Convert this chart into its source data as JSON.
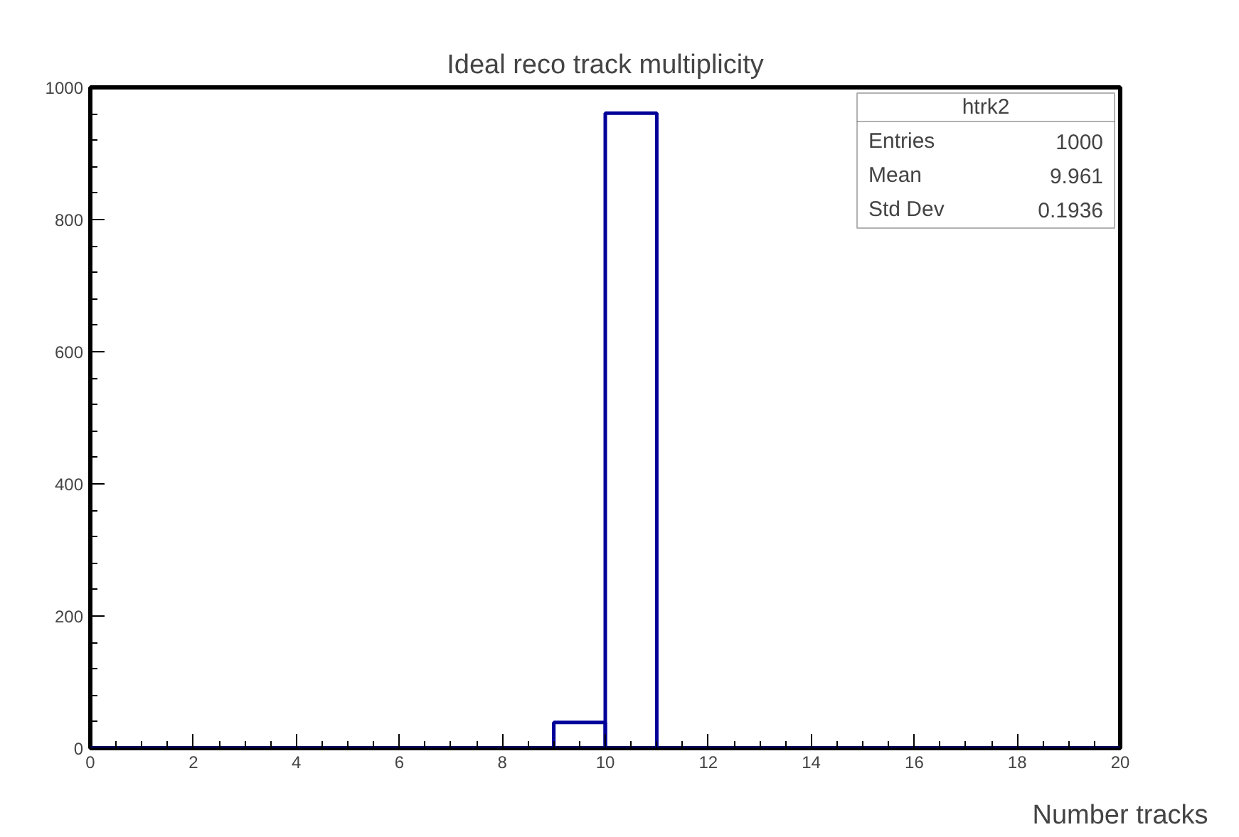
{
  "chart_data": {
    "type": "histogram",
    "title": "Ideal reco track multiplicity",
    "xlabel": "Number tracks",
    "bins": [
      0,
      1,
      2,
      3,
      4,
      5,
      6,
      7,
      8,
      9,
      10,
      11,
      12,
      13,
      14,
      15,
      16,
      17,
      18,
      19,
      20
    ],
    "values": [
      0,
      0,
      0,
      0,
      0,
      0,
      0,
      0,
      0,
      39,
      961,
      0,
      0,
      0,
      0,
      0,
      0,
      0,
      0,
      0
    ],
    "color": "#000099",
    "xlim": [
      0,
      20
    ],
    "xticks": [
      0,
      2,
      4,
      6,
      8,
      10,
      12,
      14,
      16,
      18,
      20
    ],
    "ylim": [
      0,
      1000
    ],
    "yticks": [
      0,
      200,
      400,
      600,
      800,
      1000
    ],
    "grid": false,
    "annotations": [
      "htrk2",
      "Entries",
      "1000",
      "Mean",
      "9.961",
      "Std Dev",
      "0.1936"
    ]
  }
}
